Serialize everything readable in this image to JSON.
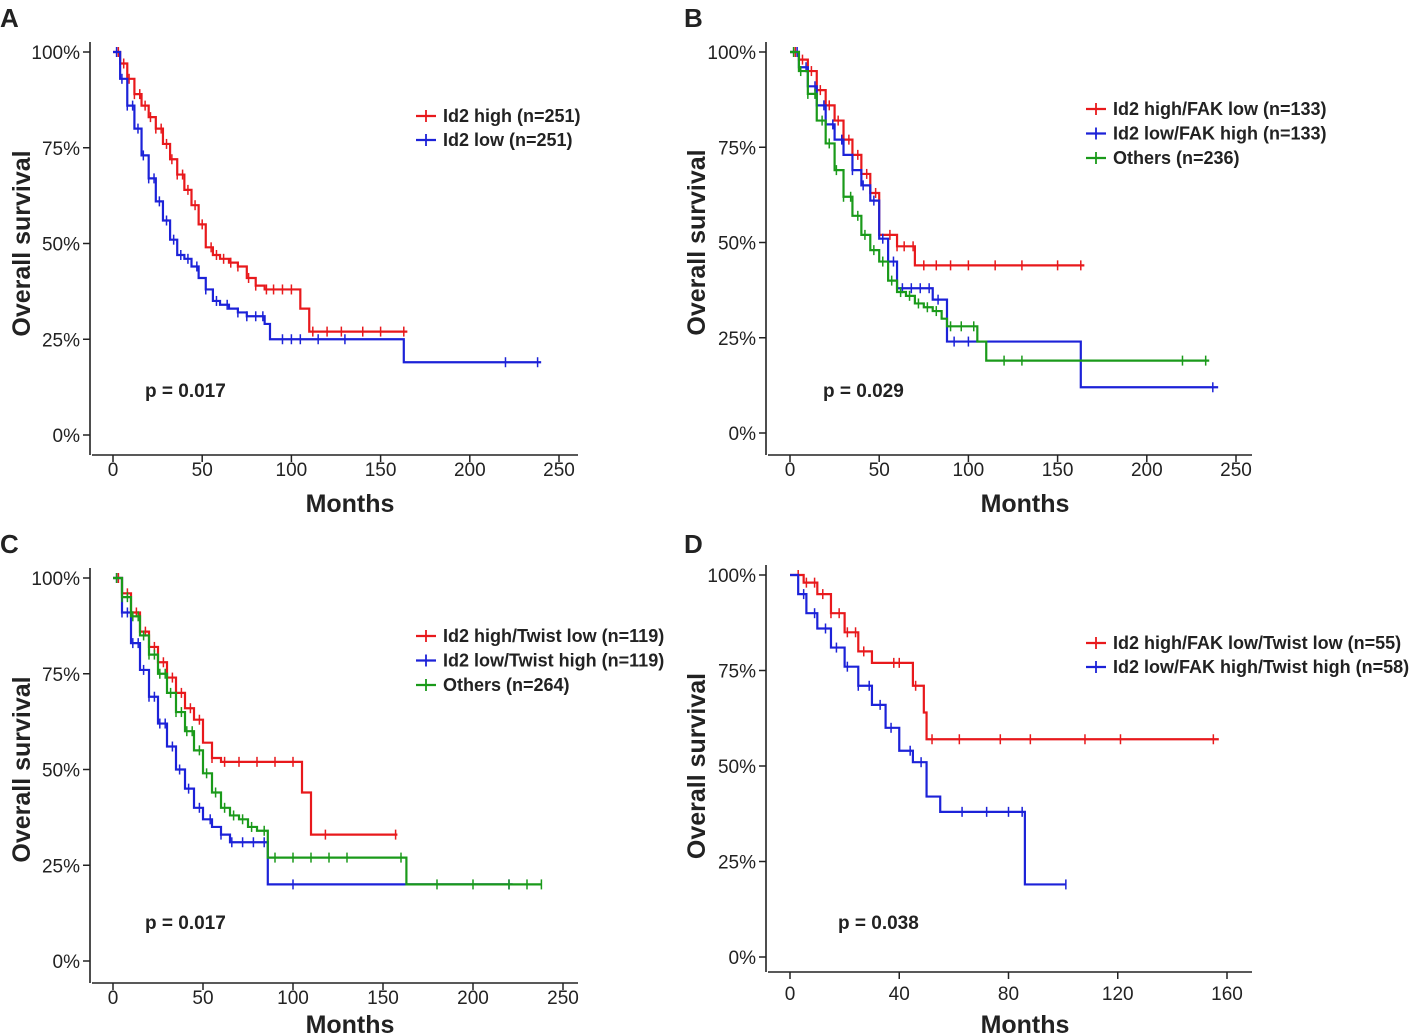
{
  "figure": {
    "panels_order": [
      "A",
      "B",
      "C",
      "D"
    ]
  },
  "chart_data": [
    {
      "type": "line",
      "panel_label": "A",
      "xlabel": "Months",
      "ylabel": "Overall survival",
      "xlim": [
        0,
        250
      ],
      "ylim": [
        0,
        100
      ],
      "xticks": [
        0,
        50,
        100,
        150,
        200,
        250
      ],
      "yticks": [
        0,
        25,
        50,
        75,
        100
      ],
      "ytick_suffix": "%",
      "p_value": "p = 0.017",
      "legend_position": "top-right",
      "series": [
        {
          "name": "Id2 high (n=251)",
          "color": "#e8191c",
          "x": [
            0,
            4,
            8,
            12,
            16,
            20,
            24,
            28,
            32,
            36,
            40,
            44,
            48,
            52,
            56,
            60,
            65,
            70,
            75,
            80,
            85,
            90,
            100,
            105,
            110,
            120,
            130,
            140,
            150,
            165
          ],
          "y": [
            100,
            97,
            93,
            89,
            86,
            83,
            80,
            76,
            72,
            68,
            64,
            60,
            55,
            49,
            47,
            46,
            45,
            44,
            41,
            39,
            38,
            38,
            38,
            33,
            27,
            27,
            27,
            27,
            27,
            27
          ],
          "censor_x": [
            3,
            6,
            9,
            12,
            15,
            18,
            21,
            24,
            27,
            30,
            33,
            36,
            39,
            42,
            46,
            50,
            55,
            58,
            62,
            66,
            70,
            76,
            80,
            86,
            90,
            95,
            100,
            112,
            120,
            128,
            140,
            150,
            163
          ]
        },
        {
          "name": "Id2 low (n=251)",
          "color": "#1c22d8",
          "x": [
            0,
            4,
            8,
            12,
            16,
            20,
            24,
            28,
            32,
            36,
            40,
            44,
            48,
            52,
            56,
            60,
            65,
            70,
            75,
            80,
            85,
            88,
            100,
            120,
            140,
            163,
            170,
            190,
            210,
            220,
            240
          ],
          "y": [
            100,
            93,
            86,
            80,
            73,
            67,
            61,
            56,
            51,
            47,
            46,
            44,
            41,
            38,
            35,
            34,
            33,
            32,
            31,
            31,
            29,
            25,
            25,
            25,
            25,
            19,
            19,
            19,
            19,
            19,
            19
          ],
          "censor_x": [
            2,
            5,
            8,
            11,
            14,
            17,
            20,
            23,
            26,
            30,
            34,
            38,
            42,
            47,
            52,
            58,
            64,
            70,
            75,
            80,
            84,
            95,
            100,
            105,
            115,
            130,
            220,
            238
          ]
        }
      ]
    },
    {
      "type": "line",
      "panel_label": "B",
      "xlabel": "Months",
      "ylabel": "Overall survival",
      "xlim": [
        0,
        250
      ],
      "ylim": [
        0,
        100
      ],
      "xticks": [
        0,
        50,
        100,
        150,
        200,
        250
      ],
      "yticks": [
        0,
        25,
        50,
        75,
        100
      ],
      "ytick_suffix": "%",
      "p_value": "p = 0.029",
      "legend_position": "top-right",
      "series": [
        {
          "name": "Id2 high/FAK low (n=133)",
          "color": "#e8191c",
          "x": [
            0,
            5,
            10,
            15,
            20,
            25,
            30,
            35,
            40,
            45,
            50,
            55,
            60,
            65,
            70,
            80,
            90,
            100,
            120,
            140,
            165
          ],
          "y": [
            100,
            98,
            95,
            90,
            86,
            82,
            77,
            73,
            68,
            63,
            52,
            52,
            49,
            49,
            44,
            44,
            44,
            44,
            44,
            44,
            44
          ],
          "censor_x": [
            3,
            7,
            12,
            17,
            22,
            27,
            33,
            38,
            43,
            48,
            56,
            60,
            64,
            69,
            75,
            82,
            90,
            100,
            115,
            130,
            150,
            163
          ]
        },
        {
          "name": "Id2 low/FAK high (n=133)",
          "color": "#1c22d8",
          "x": [
            0,
            5,
            10,
            15,
            20,
            25,
            30,
            35,
            40,
            45,
            50,
            55,
            60,
            65,
            70,
            75,
            80,
            85,
            88,
            95,
            100,
            110,
            120,
            140,
            163,
            170,
            200,
            240
          ],
          "y": [
            100,
            96,
            91,
            86,
            81,
            77,
            73,
            69,
            65,
            61,
            51,
            45,
            38,
            38,
            38,
            38,
            35,
            35,
            24,
            24,
            24,
            24,
            24,
            24,
            12,
            12,
            12,
            12
          ],
          "censor_x": [
            4,
            9,
            14,
            19,
            24,
            29,
            35,
            41,
            47,
            52,
            58,
            63,
            68,
            73,
            78,
            83,
            92,
            100,
            237
          ]
        },
        {
          "name": "Others (n=236)",
          "color": "#1a9a1a",
          "x": [
            0,
            5,
            10,
            15,
            20,
            25,
            30,
            35,
            40,
            45,
            50,
            55,
            60,
            65,
            70,
            75,
            80,
            85,
            88,
            95,
            100,
            105,
            110,
            120,
            140,
            160,
            180,
            200,
            235
          ],
          "y": [
            100,
            95,
            89,
            82,
            76,
            69,
            62,
            57,
            52,
            48,
            45,
            40,
            37,
            36,
            34,
            33,
            32,
            30,
            28,
            28,
            28,
            24,
            19,
            19,
            19,
            19,
            19,
            19,
            19
          ],
          "censor_x": [
            2,
            6,
            10,
            14,
            18,
            22,
            26,
            30,
            34,
            38,
            42,
            47,
            52,
            57,
            62,
            67,
            72,
            77,
            82,
            90,
            96,
            103,
            120,
            130,
            220,
            233
          ]
        }
      ]
    },
    {
      "type": "line",
      "panel_label": "C",
      "xlabel": "Months",
      "ylabel": "Overall survival",
      "xlim": [
        0,
        250
      ],
      "ylim": [
        0,
        100
      ],
      "xticks": [
        0,
        50,
        100,
        150,
        200,
        250
      ],
      "yticks": [
        0,
        25,
        50,
        75,
        100
      ],
      "ytick_suffix": "%",
      "p_value": "p = 0.017",
      "legend_position": "top-right",
      "series": [
        {
          "name": "Id2 high/Twist low (n=119)",
          "color": "#e8191c",
          "x": [
            0,
            5,
            10,
            15,
            20,
            25,
            30,
            35,
            40,
            45,
            50,
            55,
            60,
            70,
            80,
            90,
            100,
            105,
            110,
            120,
            140,
            158
          ],
          "y": [
            100,
            96,
            91,
            86,
            82,
            78,
            74,
            70,
            66,
            63,
            57,
            53,
            52,
            52,
            52,
            52,
            52,
            44,
            33,
            33,
            33,
            33
          ],
          "censor_x": [
            3,
            8,
            13,
            18,
            23,
            28,
            33,
            38,
            43,
            48,
            55,
            62,
            70,
            80,
            90,
            100,
            118,
            157
          ]
        },
        {
          "name": "Id2 low/Twist high (n=119)",
          "color": "#1c22d8",
          "x": [
            0,
            5,
            10,
            15,
            20,
            25,
            30,
            35,
            40,
            45,
            50,
            55,
            60,
            65,
            70,
            75,
            80,
            86,
            100,
            120,
            140,
            163,
            180,
            200,
            222
          ],
          "y": [
            100,
            91,
            83,
            76,
            69,
            62,
            56,
            50,
            45,
            40,
            37,
            35,
            33,
            31,
            31,
            31,
            31,
            20,
            20,
            20,
            20,
            20,
            20,
            20,
            20
          ],
          "censor_x": [
            2,
            5,
            8,
            11,
            14,
            17,
            20,
            23,
            26,
            29,
            33,
            37,
            42,
            48,
            54,
            60,
            66,
            72,
            78,
            84,
            100,
            220
          ]
        },
        {
          "name": "Others (n=264)",
          "color": "#1a9a1a",
          "x": [
            0,
            5,
            10,
            15,
            20,
            25,
            30,
            35,
            40,
            45,
            50,
            55,
            60,
            65,
            70,
            75,
            80,
            86,
            100,
            120,
            140,
            163,
            180,
            200,
            238
          ],
          "y": [
            100,
            95,
            90,
            85,
            80,
            75,
            70,
            65,
            60,
            55,
            49,
            44,
            40,
            38,
            37,
            35,
            34,
            27,
            27,
            27,
            27,
            20,
            20,
            20,
            20
          ],
          "censor_x": [
            2,
            5,
            8,
            11,
            14,
            17,
            20,
            23,
            26,
            29,
            32,
            35,
            38,
            41,
            44,
            48,
            52,
            57,
            62,
            67,
            72,
            77,
            84,
            90,
            100,
            110,
            120,
            130,
            160,
            180,
            200,
            220,
            230,
            238
          ]
        }
      ]
    },
    {
      "type": "line",
      "panel_label": "D",
      "xlabel": "Months",
      "ylabel": "Overall survival",
      "xlim": [
        -5,
        165
      ],
      "ylim": [
        0,
        100
      ],
      "xticks": [
        0,
        40,
        80,
        120,
        160
      ],
      "yticks": [
        0,
        25,
        50,
        75,
        100
      ],
      "ytick_suffix": "%",
      "p_value": "p = 0.038",
      "legend_position": "top-right",
      "series": [
        {
          "name": "Id2 high/FAK low/Twist low (n=55)",
          "color": "#e8191c",
          "x": [
            0,
            5,
            10,
            15,
            20,
            25,
            30,
            40,
            45,
            49,
            50,
            60,
            80,
            100,
            120,
            140,
            157
          ],
          "y": [
            100,
            98,
            95,
            90,
            85,
            80,
            77,
            77,
            71,
            64,
            57,
            57,
            57,
            57,
            57,
            57,
            57
          ],
          "censor_x": [
            3,
            6,
            9,
            12,
            15,
            18,
            21,
            24,
            27,
            38,
            40,
            46,
            52,
            62,
            77,
            88,
            108,
            121,
            155
          ]
        },
        {
          "name": "Id2 low/FAK high/Twist high (n=58)",
          "color": "#1c22d8",
          "x": [
            0,
            3,
            6,
            10,
            15,
            20,
            25,
            30,
            35,
            40,
            45,
            49,
            50,
            55,
            65,
            80,
            85,
            86,
            90,
            101
          ],
          "y": [
            100,
            95,
            90,
            86,
            81,
            76,
            71,
            66,
            60,
            54,
            51,
            51,
            42,
            38,
            38,
            38,
            38,
            19,
            19,
            19
          ],
          "censor_x": [
            5,
            9,
            13,
            17,
            21,
            25,
            29,
            33,
            37,
            44,
            48,
            63,
            72,
            80,
            85,
            101
          ]
        }
      ]
    }
  ]
}
